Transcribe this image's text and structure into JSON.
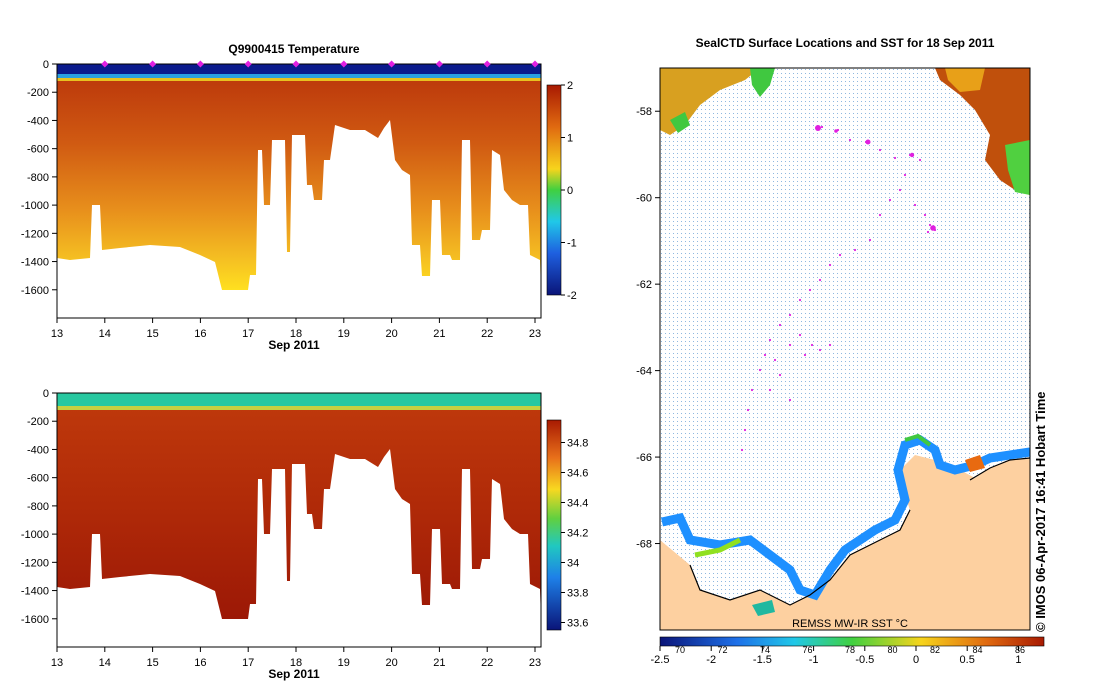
{
  "chart_data": [
    {
      "type": "heatmap",
      "title": "Q9900415  Temperature",
      "xlabel": "Sep 2011",
      "x_ticks": [
        "13",
        "14",
        "15",
        "16",
        "17",
        "18",
        "19",
        "20",
        "21",
        "22",
        "23"
      ],
      "y_ticks": [
        "0",
        "-200",
        "-400",
        "-600",
        "-800",
        "-1000",
        "-1200",
        "-1400",
        "-1600"
      ],
      "ylim": [
        -1800,
        0
      ],
      "colorbar": {
        "ticks": [
          "2",
          "1",
          "0",
          "-1",
          "-2"
        ],
        "range": [
          -2,
          2
        ]
      },
      "marker_days": [
        14,
        15,
        16,
        17,
        18,
        19,
        20,
        21,
        22,
        23
      ],
      "marker_color": "#e020e0"
    },
    {
      "type": "heatmap",
      "title": "",
      "xlabel": "Sep 2011",
      "x_ticks": [
        "13",
        "14",
        "15",
        "16",
        "17",
        "18",
        "19",
        "20",
        "21",
        "22",
        "23"
      ],
      "y_ticks": [
        "0",
        "-200",
        "-400",
        "-600",
        "-800",
        "-1000",
        "-1200",
        "-1400",
        "-1600"
      ],
      "ylim": [
        -1800,
        0
      ],
      "colorbar": {
        "ticks": [
          "34.8",
          "34.6",
          "34.4",
          "34.2",
          "34",
          "33.8",
          "33.6"
        ],
        "range": [
          33.55,
          34.95
        ]
      }
    },
    {
      "type": "heatmap",
      "title": "SealCTD Surface Locations and SST for 18 Sep 2011",
      "y_ticks": [
        "-58",
        "-60",
        "-62",
        "-64",
        "-66",
        "-68"
      ],
      "ylim": [
        -70,
        -57
      ],
      "sst_label": "REMSS MW-IR SST °C",
      "colorbar": {
        "ticks": [
          "-2.5",
          "-2",
          "-1.5",
          "-1",
          "-0.5",
          "0",
          "0.5",
          "1"
        ],
        "range": [
          -2.5,
          1.25
        ]
      },
      "colorbar_faint_ticks": [
        "70",
        "72",
        "74",
        "76",
        "78",
        "80",
        "82",
        "84",
        "86"
      ]
    }
  ],
  "stamp": "© IMOS 06-Apr-2017 16:41 Hobart Time",
  "colors": {
    "cold": "#0a1a8c",
    "ice_blue": "#1e90ff",
    "warm": "#c24a0c",
    "deep_red": "#a61c05",
    "land": "#fdd0a0",
    "track": "#e020e0"
  }
}
